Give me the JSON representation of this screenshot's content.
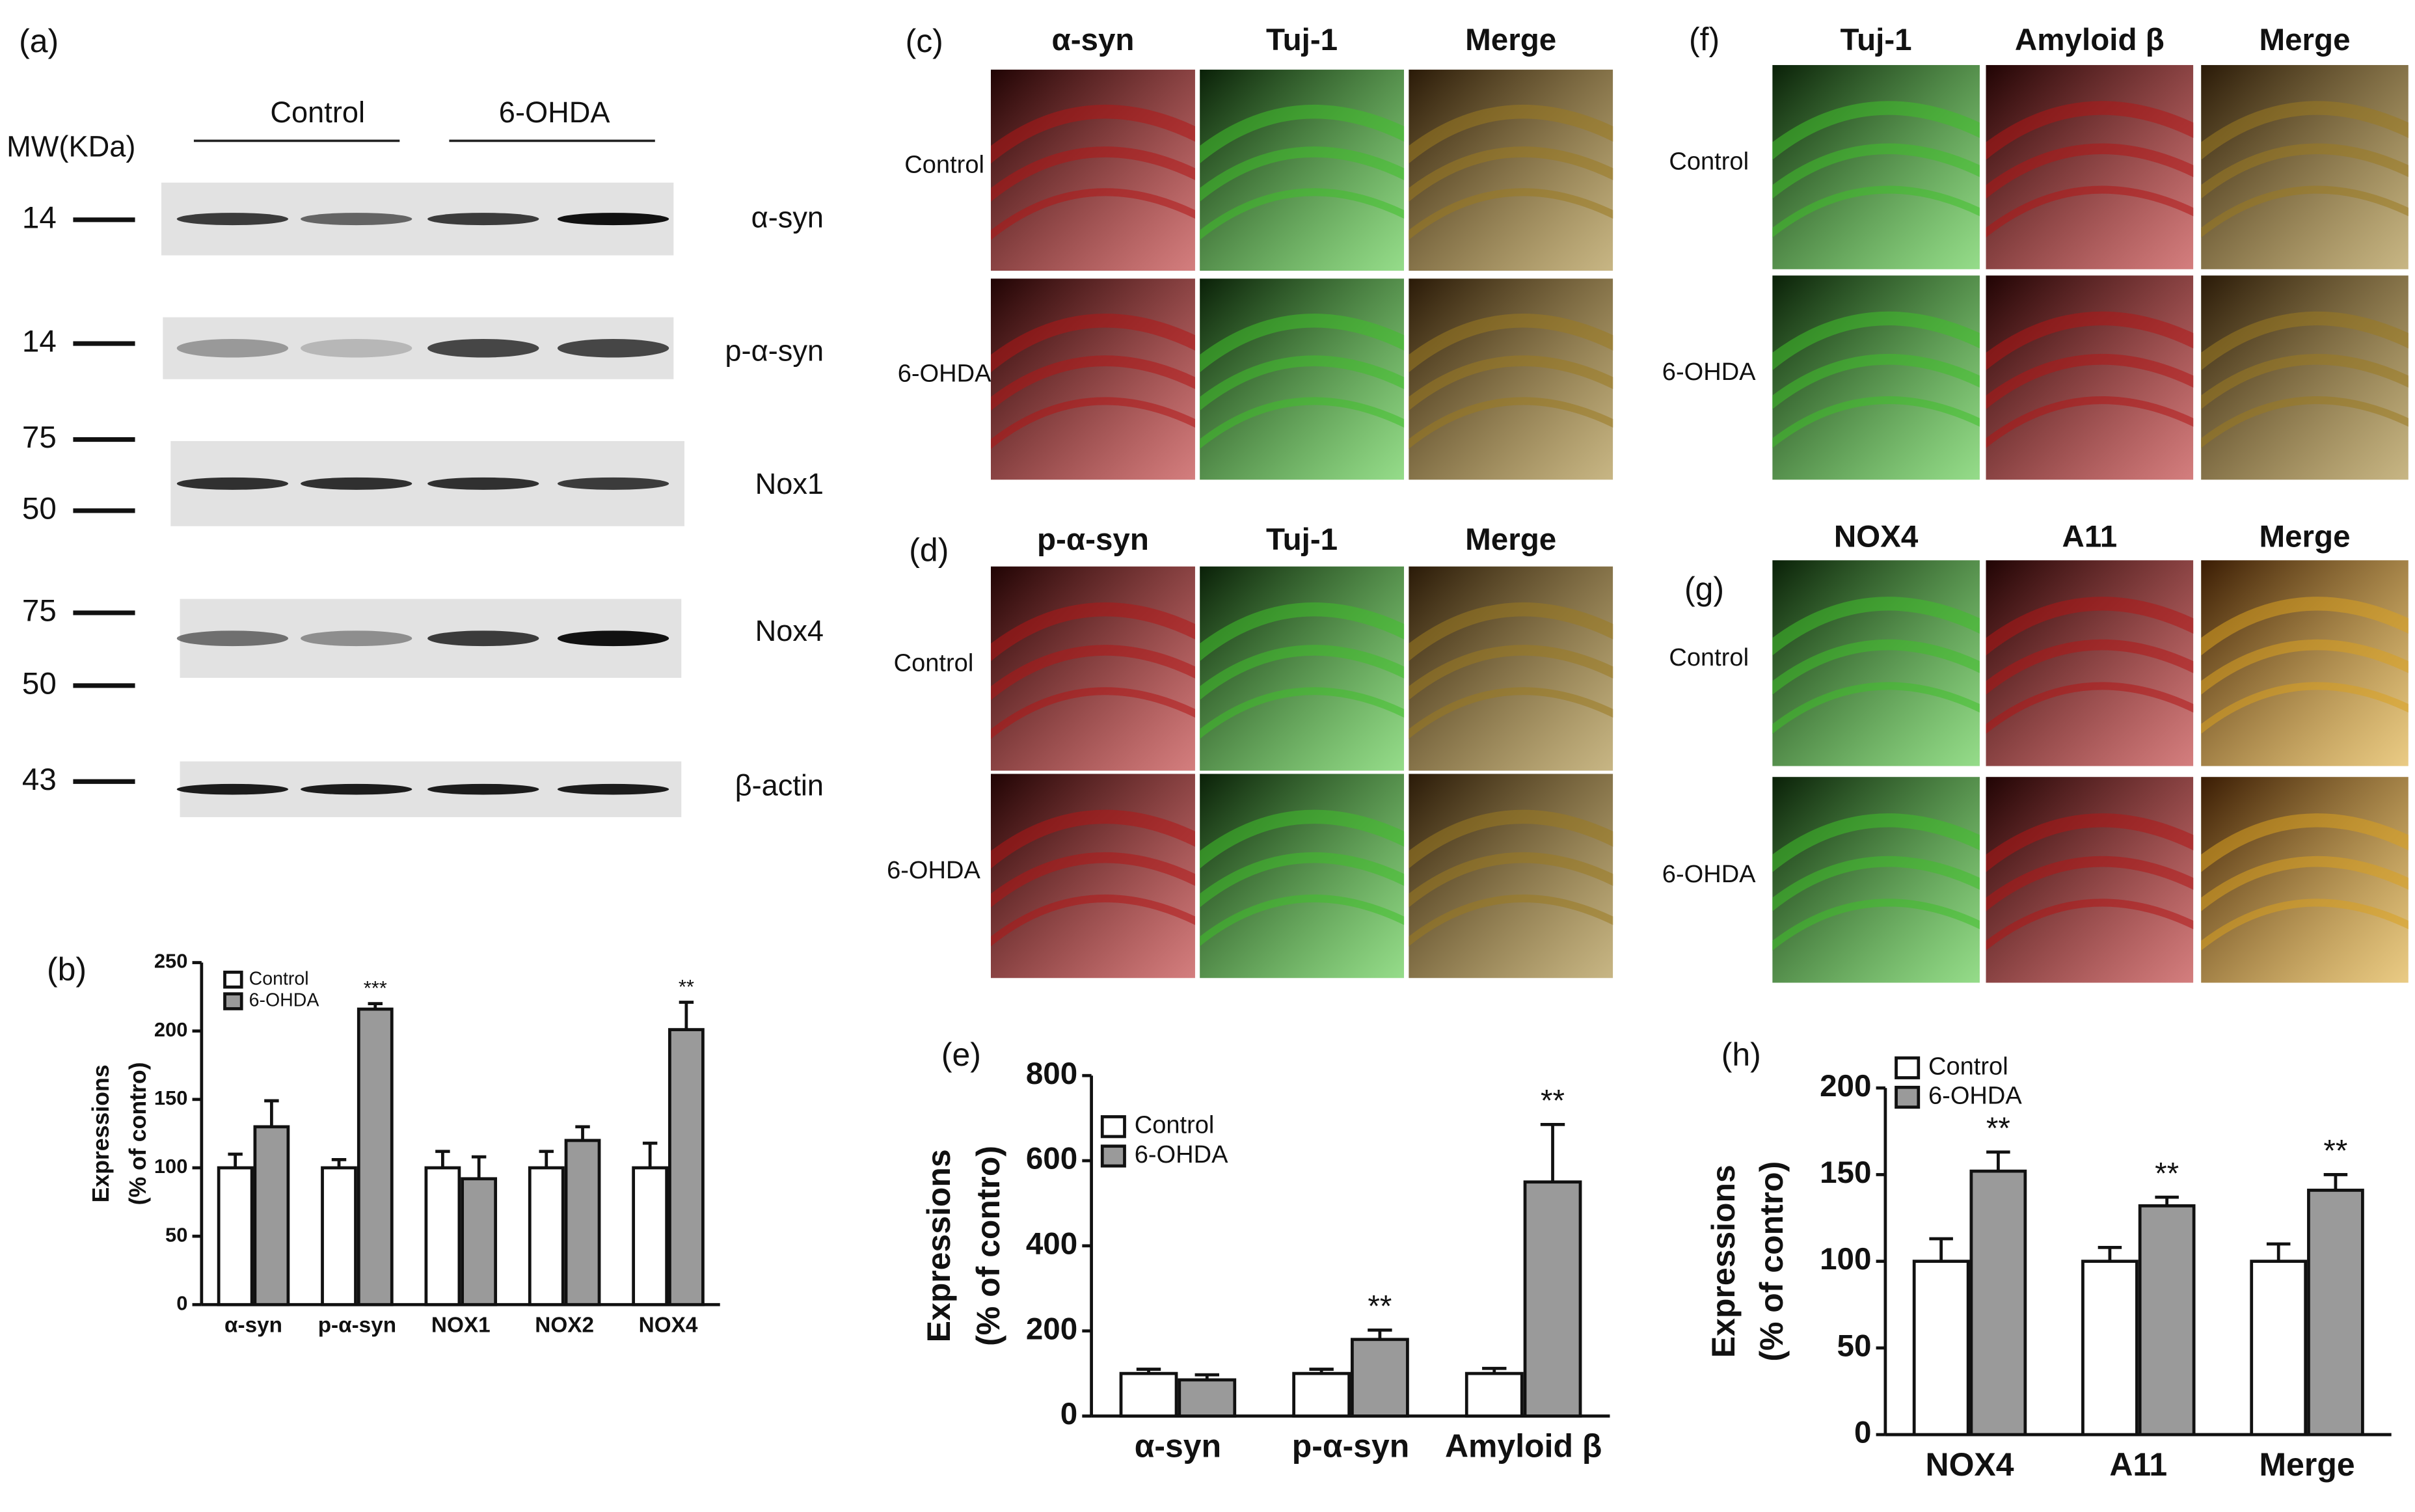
{
  "panel_a": {
    "label": "(a)",
    "mw_title": "MW(KDa)",
    "groups": [
      "Control",
      "6-OHDA"
    ],
    "rows": [
      {
        "name": "α-syn",
        "markers": [
          14
        ]
      },
      {
        "name": "p-α-syn",
        "markers": [
          14
        ]
      },
      {
        "name": "Nox1",
        "markers": [
          75,
          50
        ]
      },
      {
        "name": "Nox4",
        "markers": [
          75,
          50
        ]
      },
      {
        "name": "β-actin",
        "markers": [
          43
        ]
      }
    ]
  },
  "micrographs": [
    {
      "label": "(c)",
      "columns": [
        "α-syn",
        "Tuj-1",
        "Merge"
      ],
      "rows": [
        "Control",
        "6-OHDA"
      ]
    },
    {
      "label": "(d)",
      "columns": [
        "p-α-syn",
        "Tuj-1",
        "Merge"
      ],
      "rows": [
        "Control",
        "6-OHDA"
      ]
    },
    {
      "label": "(f)",
      "columns": [
        "Tuj-1",
        "Amyloid β",
        "Merge"
      ],
      "rows": [
        "Control",
        "6-OHDA"
      ]
    },
    {
      "label": "(g)",
      "columns": [
        "NOX4",
        "A11",
        "Merge"
      ],
      "rows": [
        "Control",
        "6-OHDA"
      ]
    }
  ],
  "chart_data": [
    {
      "type": "bar",
      "panel": "(b)",
      "ylabel": [
        "Expressions",
        "(% of contro)"
      ],
      "categories": [
        "α-syn",
        "p-α-syn",
        "NOX1",
        "NOX2",
        "NOX4"
      ],
      "series": [
        {
          "name": "Control",
          "color": "#ffffff",
          "values": [
            100,
            100,
            100,
            100,
            100
          ],
          "errors": [
            10,
            6,
            12,
            12,
            18
          ]
        },
        {
          "name": "6-OHDA",
          "color": "#9a9a9a",
          "values": [
            130,
            216,
            92,
            120,
            201
          ],
          "errors": [
            19,
            4,
            16,
            10,
            20
          ],
          "annotations": [
            null,
            "***",
            null,
            null,
            "**"
          ]
        }
      ],
      "ylim": [
        0,
        250
      ],
      "yticks": [
        0,
        50,
        100,
        150,
        200,
        250
      ]
    },
    {
      "type": "bar",
      "panel": "(e)",
      "ylabel": [
        "Expressions",
        "(% of contro)"
      ],
      "categories": [
        "α-syn",
        "p-α-syn",
        "Amyloid β"
      ],
      "series": [
        {
          "name": "Control",
          "color": "#ffffff",
          "values": [
            100,
            100,
            100
          ],
          "errors": [
            10,
            10,
            12
          ]
        },
        {
          "name": "6-OHDA",
          "color": "#9a9a9a",
          "values": [
            85,
            180,
            550
          ],
          "errors": [
            12,
            22,
            135
          ],
          "annotations": [
            null,
            "**",
            "**"
          ]
        }
      ],
      "ylim": [
        0,
        800
      ],
      "yticks": [
        0,
        200,
        400,
        600,
        800
      ]
    },
    {
      "type": "bar",
      "panel": "(h)",
      "ylabel": [
        "Expressions",
        "(% of contro)"
      ],
      "categories": [
        "NOX4",
        "A11",
        "Merge"
      ],
      "series": [
        {
          "name": "Control",
          "color": "#ffffff",
          "values": [
            100,
            100,
            100
          ],
          "errors": [
            13,
            8,
            10
          ]
        },
        {
          "name": "6-OHDA",
          "color": "#9a9a9a",
          "values": [
            152,
            132,
            141
          ],
          "errors": [
            11,
            5,
            9
          ],
          "annotations": [
            "**",
            "**",
            "**"
          ]
        }
      ],
      "ylim": [
        0,
        200
      ],
      "yticks": [
        0,
        50,
        100,
        150,
        200
      ]
    }
  ]
}
